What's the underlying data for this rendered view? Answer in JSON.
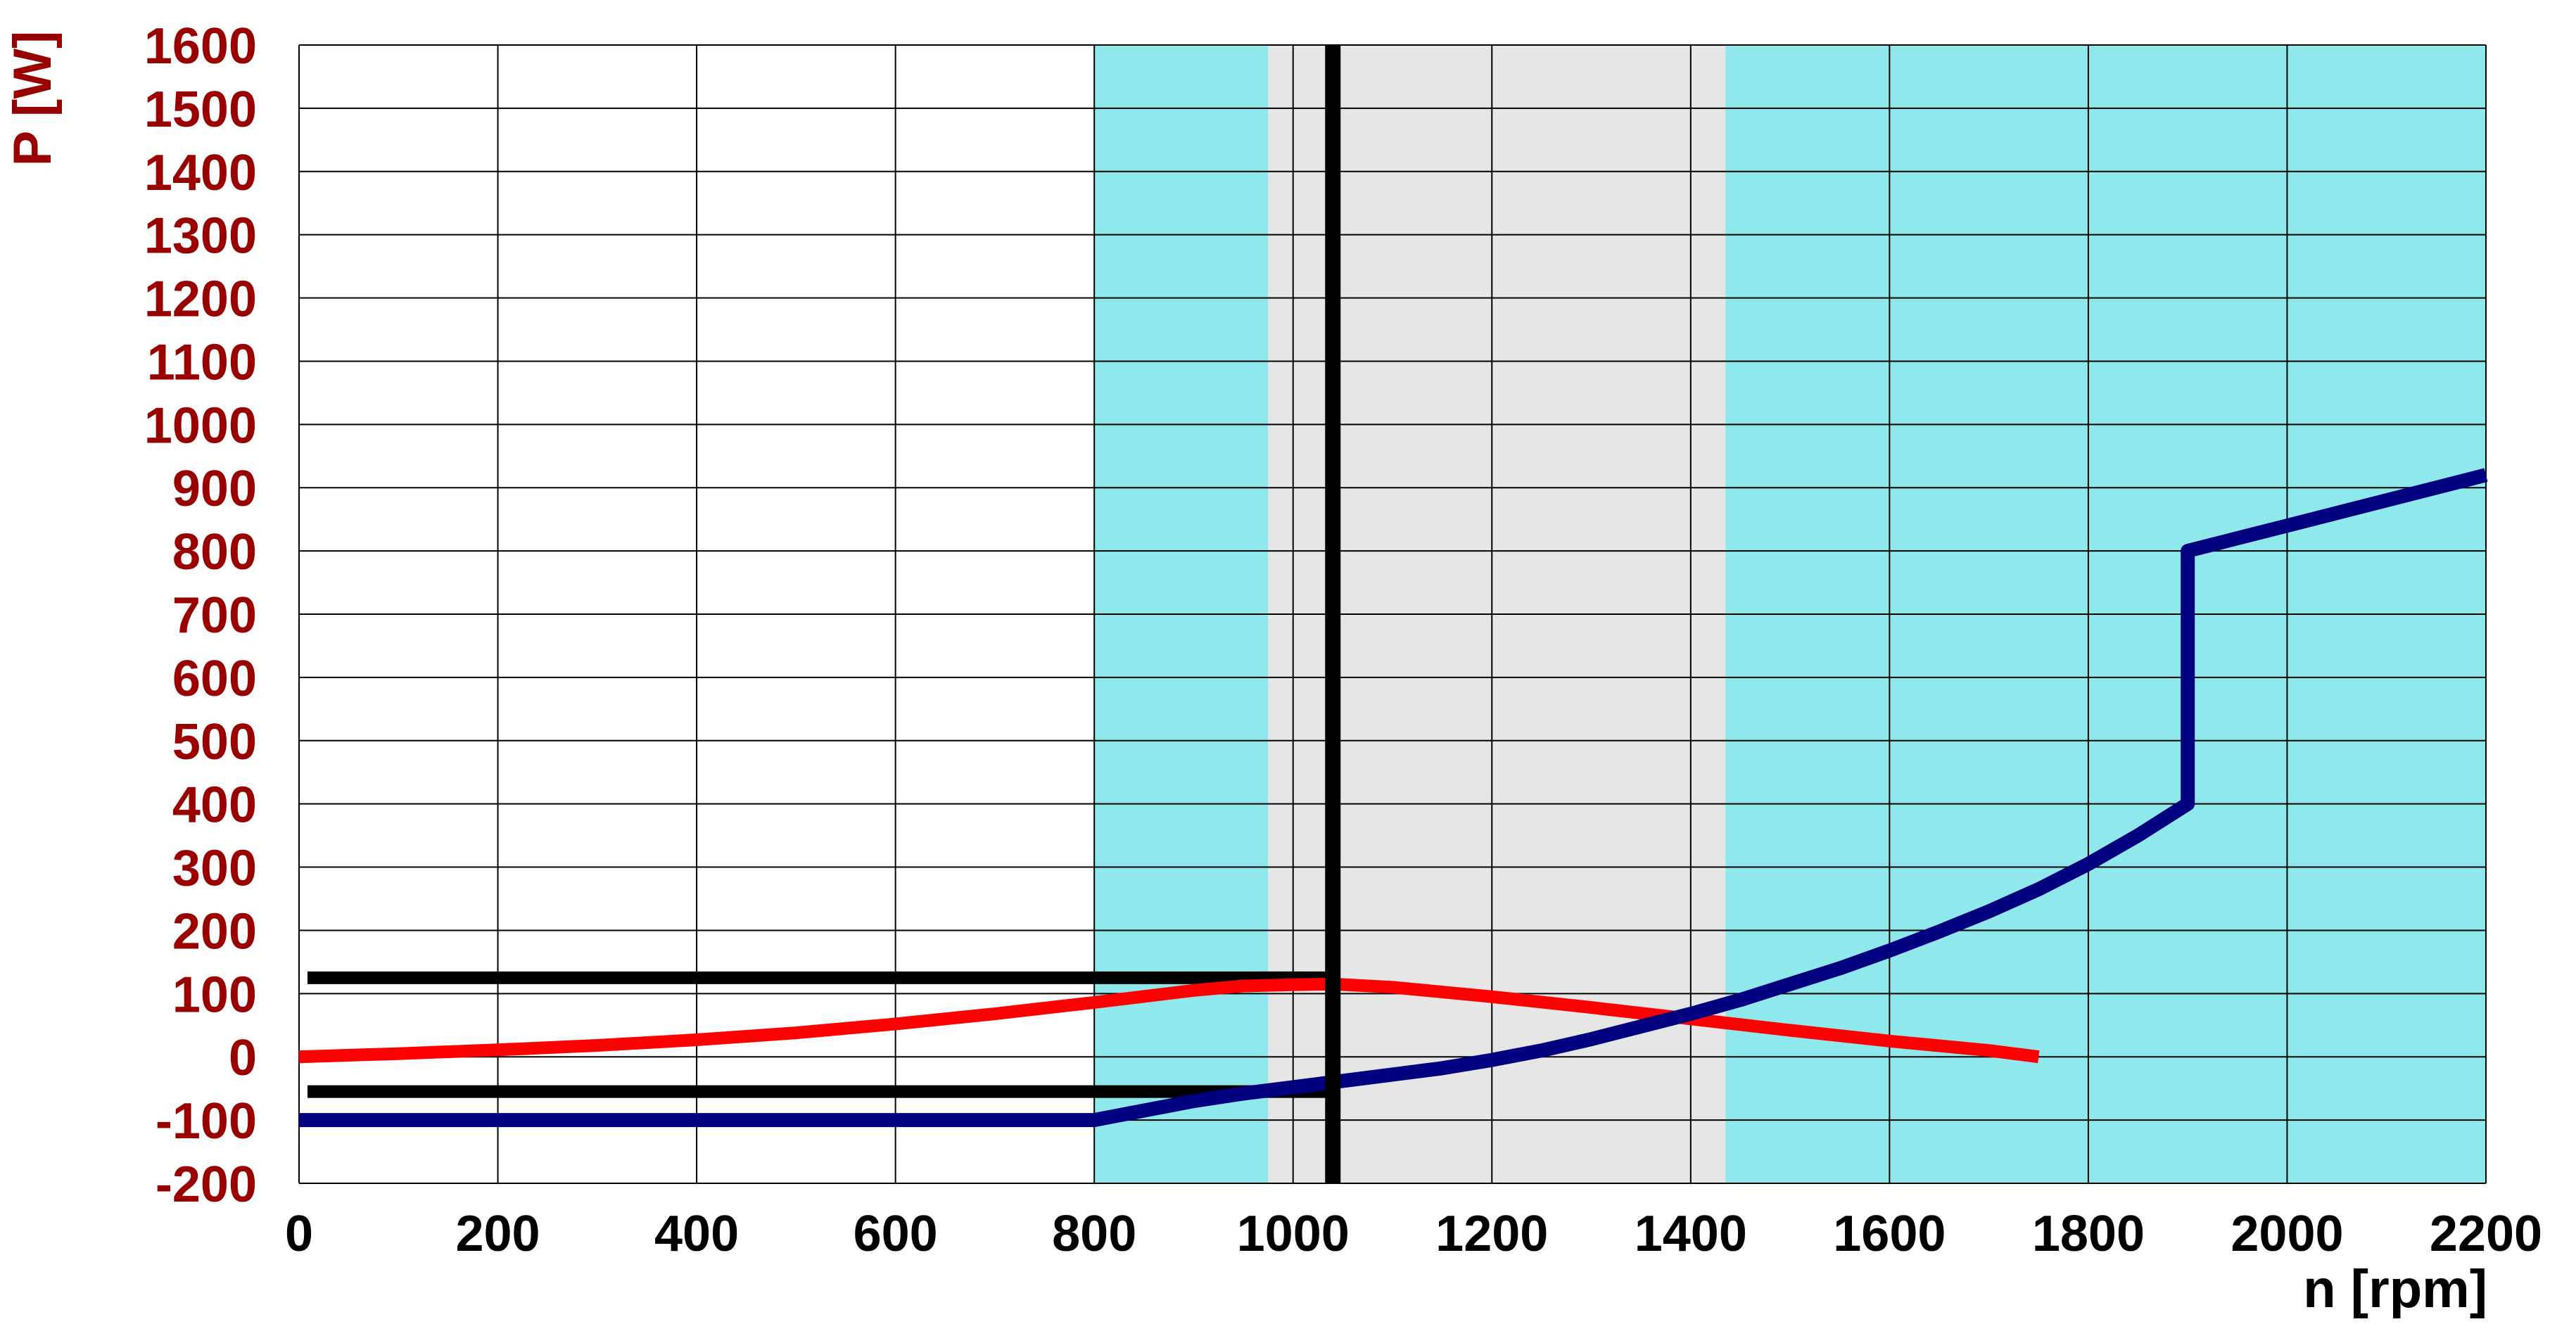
{
  "chart_data": {
    "type": "line",
    "title": "",
    "ylabel": "P [W]",
    "xlabel": "n [rpm]",
    "xlim": [
      0,
      2200
    ],
    "ylim": [
      -200,
      1600
    ],
    "xticks": [
      0,
      200,
      400,
      600,
      800,
      1000,
      1200,
      1400,
      1600,
      1800,
      2000,
      2200
    ],
    "yticks": [
      -200,
      -100,
      0,
      100,
      200,
      300,
      400,
      500,
      600,
      700,
      800,
      900,
      1000,
      1100,
      1200,
      1300,
      1400,
      1500,
      1600
    ],
    "xtick_labels": [
      "0",
      "200",
      "400",
      "600",
      "800",
      "1000",
      "1200",
      "1400",
      "1600",
      "1800",
      "2000",
      "2200"
    ],
    "ytick_labels": [
      "-200",
      "-100",
      "0",
      "100",
      "200",
      "300",
      "400",
      "500",
      "600",
      "700",
      "800",
      "900",
      "1000",
      "1100",
      "1200",
      "1300",
      "1400",
      "1500",
      "1600"
    ],
    "grid": true,
    "shaded_regions": [
      {
        "x": [
          800,
          975
        ],
        "color": "#8fe9ec"
      },
      {
        "x": [
          975,
          1435
        ],
        "color": "#e6e6e6"
      },
      {
        "x": [
          1435,
          2200
        ],
        "color": "#8fe9ec"
      }
    ],
    "vertical_lines": [
      {
        "x": 1040,
        "color": "#000000"
      }
    ],
    "horizontal_lines": [
      {
        "y": 125,
        "x": [
          0,
          1040
        ],
        "color": "#000000"
      },
      {
        "y": -55,
        "x": [
          0,
          1040
        ],
        "color": "#000000"
      }
    ],
    "series": [
      {
        "color": "#ff0000",
        "x": [
          0,
          100,
          200,
          300,
          400,
          500,
          600,
          700,
          800,
          900,
          950,
          1000,
          1040,
          1100,
          1200,
          1300,
          1400,
          1500,
          1600,
          1700,
          1750
        ],
        "y": [
          0,
          5,
          11,
          18,
          27,
          38,
          52,
          68,
          86,
          105,
          112,
          114,
          115,
          110,
          95,
          78,
          60,
          42,
          25,
          10,
          0
        ]
      },
      {
        "color": "#000080",
        "x": [
          0,
          800,
          850,
          900,
          950,
          1000,
          1050,
          1100,
          1150,
          1200,
          1250,
          1300,
          1350,
          1400,
          1450,
          1500,
          1550,
          1600,
          1650,
          1700,
          1750,
          1800,
          1850,
          1900,
          1900,
          1950,
          2000,
          2050,
          2100,
          2150,
          2200
        ],
        "y": [
          -100,
          -100,
          -85,
          -70,
          -58,
          -48,
          -38,
          -28,
          -18,
          -5,
          10,
          28,
          48,
          68,
          90,
          115,
          140,
          168,
          198,
          230,
          265,
          305,
          350,
          400,
          800,
          820,
          840,
          860,
          880,
          900,
          920
        ]
      }
    ]
  }
}
